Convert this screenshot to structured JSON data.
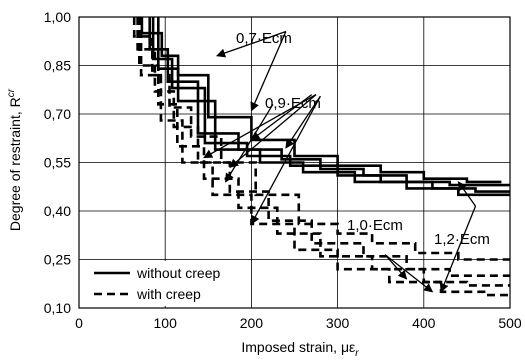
{
  "chart_data": {
    "type": "line",
    "xlabel": "Imposed strain, με",
    "xlabel_sub": "r",
    "ylabel": "Degree of restraint, R",
    "ylabel_sup": "cr",
    "xlim": [
      0,
      500
    ],
    "ylim": [
      0.1,
      1.0
    ],
    "x_ticks": [
      0,
      100,
      200,
      300,
      400,
      500
    ],
    "x_tick_labels": [
      "0",
      "100",
      "200",
      "300",
      "400",
      "500"
    ],
    "y_ticks": [
      0.1,
      0.25,
      0.4,
      0.55,
      0.7,
      0.85,
      1.0
    ],
    "y_tick_labels": [
      "0,10",
      "0,25",
      "0,40",
      "0,55",
      "0,70",
      "0,85",
      "1,00"
    ],
    "grid": "major gridlines on both axes",
    "legend": {
      "position": "bottom-left",
      "entries": [
        {
          "label": "without creep",
          "style": "solid"
        },
        {
          "label": "with creep",
          "style": "dashed"
        }
      ]
    },
    "annotations": [
      {
        "text": "0,7·Ecm"
      },
      {
        "text": "0,9·Ecm"
      },
      {
        "text": "1,0·Ecm"
      },
      {
        "text": "1,2·Ecm"
      }
    ],
    "series": [
      {
        "legend": "without creep",
        "modulus": "0,7·Ecm",
        "x": [
          73,
          73,
          96,
          96,
          115,
          115,
          150,
          150,
          200,
          200,
          250,
          250,
          300,
          300,
          350,
          350,
          400,
          400,
          450,
          450,
          490
        ],
        "y": [
          1.0,
          0.95,
          0.95,
          0.88,
          0.88,
          0.82,
          0.82,
          0.69,
          0.69,
          0.62,
          0.62,
          0.57,
          0.57,
          0.54,
          0.54,
          0.52,
          0.52,
          0.5,
          0.5,
          0.49,
          0.49
        ]
      },
      {
        "legend": "without creep",
        "modulus": "0,9·Ecm",
        "x": [
          82,
          82,
          103,
          103,
          138,
          138,
          185,
          185,
          235,
          235,
          280,
          280,
          330,
          330,
          380,
          380,
          430,
          430,
          500
        ],
        "y": [
          1.0,
          0.9,
          0.9,
          0.8,
          0.8,
          0.64,
          0.64,
          0.59,
          0.59,
          0.56,
          0.56,
          0.53,
          0.53,
          0.51,
          0.51,
          0.49,
          0.49,
          0.48,
          0.48
        ]
      },
      {
        "legend": "without creep",
        "modulus": "1,0·Ecm",
        "x": [
          86,
          86,
          108,
          108,
          146,
          146,
          195,
          195,
          245,
          245,
          300,
          300,
          350,
          350,
          410,
          410,
          460,
          460,
          500
        ],
        "y": [
          1.0,
          0.87,
          0.87,
          0.78,
          0.78,
          0.61,
          0.61,
          0.57,
          0.57,
          0.54,
          0.54,
          0.51,
          0.51,
          0.49,
          0.49,
          0.47,
          0.47,
          0.46,
          0.46
        ]
      },
      {
        "legend": "without creep",
        "modulus": "1,2·Ecm",
        "x": [
          92,
          92,
          115,
          115,
          158,
          158,
          210,
          210,
          260,
          260,
          320,
          320,
          380,
          380,
          440,
          440,
          500
        ],
        "y": [
          1.0,
          0.84,
          0.84,
          0.74,
          0.74,
          0.59,
          0.59,
          0.55,
          0.55,
          0.52,
          0.52,
          0.49,
          0.49,
          0.47,
          0.47,
          0.45,
          0.45
        ]
      },
      {
        "legend": "with creep",
        "modulus": "0,7·Ecm",
        "x": [
          64,
          64,
          85,
          85,
          105,
          105,
          130,
          130,
          165,
          165,
          205,
          205,
          255,
          255,
          300,
          300,
          340,
          340,
          390,
          390,
          440,
          440,
          500
        ],
        "y": [
          1.0,
          0.94,
          0.94,
          0.82,
          0.82,
          0.72,
          0.72,
          0.63,
          0.63,
          0.55,
          0.55,
          0.45,
          0.45,
          0.36,
          0.36,
          0.33,
          0.33,
          0.3,
          0.3,
          0.27,
          0.27,
          0.25,
          0.25
        ]
      },
      {
        "legend": "with creep",
        "modulus": "0,9·Ecm",
        "x": [
          68,
          68,
          88,
          88,
          110,
          110,
          138,
          138,
          175,
          175,
          220,
          220,
          270,
          270,
          330,
          330,
          380,
          380,
          430,
          430,
          500
        ],
        "y": [
          1.0,
          0.9,
          0.9,
          0.77,
          0.77,
          0.66,
          0.66,
          0.55,
          0.55,
          0.46,
          0.46,
          0.37,
          0.37,
          0.3,
          0.3,
          0.26,
          0.26,
          0.22,
          0.22,
          0.2,
          0.2
        ]
      },
      {
        "legend": "with creep",
        "modulus": "1,0·Ecm",
        "x": [
          70,
          70,
          92,
          92,
          114,
          114,
          145,
          145,
          185,
          185,
          230,
          230,
          280,
          280,
          340,
          340,
          400,
          400,
          450,
          450,
          500
        ],
        "y": [
          1.0,
          0.85,
          0.85,
          0.73,
          0.73,
          0.6,
          0.6,
          0.5,
          0.5,
          0.41,
          0.41,
          0.33,
          0.33,
          0.26,
          0.26,
          0.22,
          0.22,
          0.18,
          0.18,
          0.17,
          0.17
        ]
      },
      {
        "legend": "with creep",
        "modulus": "1,2·Ecm",
        "x": [
          72,
          72,
          95,
          95,
          120,
          120,
          155,
          155,
          200,
          200,
          250,
          250,
          300,
          300,
          360,
          360,
          420,
          420,
          470,
          470,
          500
        ],
        "y": [
          1.0,
          0.82,
          0.82,
          0.68,
          0.68,
          0.55,
          0.55,
          0.45,
          0.45,
          0.36,
          0.36,
          0.28,
          0.28,
          0.22,
          0.22,
          0.18,
          0.18,
          0.15,
          0.15,
          0.14,
          0.14
        ]
      }
    ]
  }
}
